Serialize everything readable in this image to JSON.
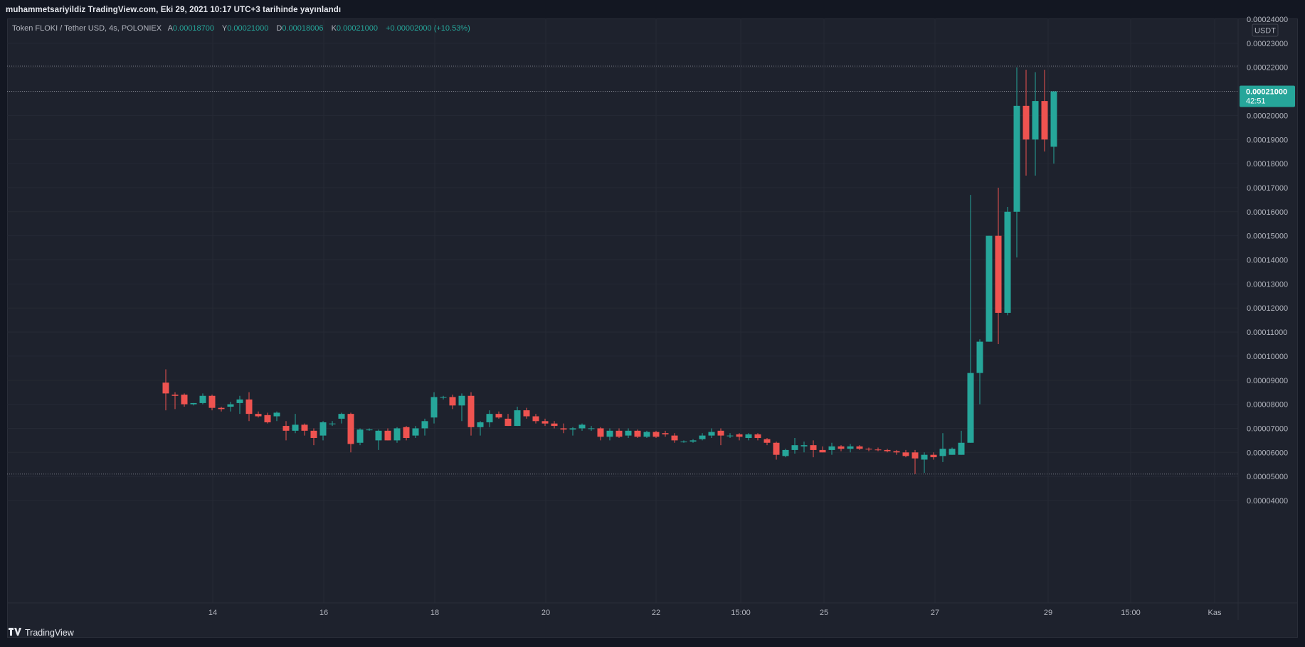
{
  "header": {
    "text": "muhammetsariyildiz TradingView.com, Eki 29, 2021 10:17 UTC+3 tarihinde yayınlandı"
  },
  "legend": {
    "symbol": "Token FLOKI / Tether USD, 4s, POLONIEX",
    "open_label": "A",
    "open": "0.00018700",
    "high_label": "Y",
    "high": "0.00021000",
    "low_label": "D",
    "low": "0.00018006",
    "close_label": "K",
    "close": "0.00021000",
    "change": "+0.00002000 (+10.53%)"
  },
  "price_axis": {
    "currency": "USDT",
    "top_partial_label": "0.00024000",
    "labels": [
      "0.00023000",
      "0.00022000",
      "0.00021000",
      "0.00020000",
      "0.00019000",
      "0.00018000",
      "0.00017000",
      "0.00016000",
      "0.00015000",
      "0.00014000",
      "0.00013000",
      "0.00012000",
      "0.00011000",
      "0.00010000",
      "0.00009000",
      "0.00008000",
      "0.00007000",
      "0.00006000",
      "0.00005000",
      "0.00004000"
    ],
    "current_price": "0.00021000",
    "countdown": "42:51",
    "current_price_color": "#26a69a"
  },
  "time_axis": {
    "labels": [
      "14",
      "16",
      "18",
      "20",
      "22",
      "15:00",
      "25",
      "27",
      "29",
      "15:00",
      "Kas"
    ]
  },
  "colors": {
    "up": "#26a69a",
    "down": "#ef5350",
    "background": "#1e222d",
    "grid": "#2a2e39"
  },
  "branding": {
    "name": "TradingView",
    "logo": "tradingview-logo-icon"
  },
  "chart_data": {
    "type": "candlestick",
    "title": "Token FLOKI / Tether USD, 4s, POLONIEX",
    "currency": "USDT",
    "ylim": [
      3.6e-05,
      0.00024
    ],
    "horizontal_lines": [
      5.1e-05,
      0.0002205,
      0.00021
    ],
    "candles": [
      [
        8.9e-05,
        9.45e-05,
        7.75e-05,
        8.45e-05
      ],
      [
        8.4e-05,
        8.5e-05,
        7.8e-05,
        8.35e-05
      ],
      [
        8.4e-05,
        8.45e-05,
        7.9e-05,
        8e-05
      ],
      [
        8e-05,
        8.05e-05,
        7.95e-05,
        8.05e-05
      ],
      [
        8.05e-05,
        8.45e-05,
        8e-05,
        8.35e-05
      ],
      [
        8.35e-05,
        8.4e-05,
        7.75e-05,
        7.85e-05
      ],
      [
        7.85e-05,
        7.9e-05,
        7.7e-05,
        7.8e-05
      ],
      [
        7.9e-05,
        8.1e-05,
        7.7e-05,
        8e-05
      ],
      [
        8.05e-05,
        8.35e-05,
        7.6e-05,
        8.2e-05
      ],
      [
        8.2e-05,
        8.5e-05,
        7.3e-05,
        7.6e-05
      ],
      [
        7.6e-05,
        7.7e-05,
        7.45e-05,
        7.5e-05
      ],
      [
        7.55e-05,
        7.65e-05,
        7.2e-05,
        7.25e-05
      ],
      [
        7.5e-05,
        7.7e-05,
        7.3e-05,
        7.65e-05
      ],
      [
        7.1e-05,
        7.3e-05,
        6.5e-05,
        6.9e-05
      ],
      [
        6.9e-05,
        7.6e-05,
        6.8e-05,
        7.15e-05
      ],
      [
        7.15e-05,
        7.2e-05,
        6.7e-05,
        6.9e-05
      ],
      [
        6.9e-05,
        7e-05,
        6.3e-05,
        6.6e-05
      ],
      [
        6.7e-05,
        7.3e-05,
        6.5e-05,
        7.25e-05
      ],
      [
        7.2e-05,
        7.3e-05,
        7.1e-05,
        7.2e-05
      ],
      [
        7.4e-05,
        7.65e-05,
        7.2e-05,
        7.6e-05
      ],
      [
        7.6e-05,
        7.65e-05,
        6e-05,
        6.35e-05
      ],
      [
        6.4e-05,
        7e-05,
        6.3e-05,
        6.95e-05
      ],
      [
        6.95e-05,
        7e-05,
        6.9e-05,
        6.95e-05
      ],
      [
        6.5e-05,
        6.95e-05,
        6.1e-05,
        6.9e-05
      ],
      [
        6.9e-05,
        7e-05,
        6.5e-05,
        6.5e-05
      ],
      [
        6.5e-05,
        7.05e-05,
        6.4e-05,
        7e-05
      ],
      [
        7.05e-05,
        7.1e-05,
        6.5e-05,
        6.6e-05
      ],
      [
        6.7e-05,
        7.1e-05,
        6.6e-05,
        7e-05
      ],
      [
        7e-05,
        7.4e-05,
        6.7e-05,
        7.3e-05
      ],
      [
        7.45e-05,
        8.5e-05,
        7.2e-05,
        8.3e-05
      ],
      [
        8.3e-05,
        8.35e-05,
        8.2e-05,
        8.3e-05
      ],
      [
        8.3e-05,
        8.4e-05,
        7.8e-05,
        7.95e-05
      ],
      [
        7.95e-05,
        8.45e-05,
        7.3e-05,
        8.35e-05
      ],
      [
        8.35e-05,
        8.5e-05,
        6.7e-05,
        7.05e-05
      ],
      [
        7.05e-05,
        7.3e-05,
        6.7e-05,
        7.25e-05
      ],
      [
        7.25e-05,
        7.75e-05,
        7.05e-05,
        7.6e-05
      ],
      [
        7.6e-05,
        7.7e-05,
        7.4e-05,
        7.45e-05
      ],
      [
        7.4e-05,
        7.6e-05,
        7.1e-05,
        7.1e-05
      ],
      [
        7.1e-05,
        7.9e-05,
        7.1e-05,
        7.75e-05
      ],
      [
        7.75e-05,
        7.85e-05,
        7.4e-05,
        7.5e-05
      ],
      [
        7.5e-05,
        7.6e-05,
        7.2e-05,
        7.3e-05
      ],
      [
        7.3e-05,
        7.4e-05,
        7.1e-05,
        7.2e-05
      ],
      [
        7.2e-05,
        7.3e-05,
        7e-05,
        7.1e-05
      ],
      [
        7e-05,
        7.2e-05,
        6.8e-05,
        6.95e-05
      ],
      [
        6.95e-05,
        7.05e-05,
        6.7e-05,
        7e-05
      ],
      [
        7e-05,
        7.2e-05,
        6.9e-05,
        7.15e-05
      ],
      [
        7e-05,
        7.1e-05,
        6.9e-05,
        7e-05
      ],
      [
        7e-05,
        7.05e-05,
        6.5e-05,
        6.65e-05
      ],
      [
        6.65e-05,
        7e-05,
        6.5e-05,
        6.9e-05
      ],
      [
        6.9e-05,
        7e-05,
        6.6e-05,
        6.65e-05
      ],
      [
        6.7e-05,
        7e-05,
        6.6e-05,
        6.9e-05
      ],
      [
        6.9e-05,
        6.95e-05,
        6.6e-05,
        6.65e-05
      ],
      [
        6.65e-05,
        6.9e-05,
        6.6e-05,
        6.85e-05
      ],
      [
        6.85e-05,
        6.9e-05,
        6.6e-05,
        6.65e-05
      ],
      [
        6.8e-05,
        6.9e-05,
        6.65e-05,
        6.75e-05
      ],
      [
        6.7e-05,
        6.8e-05,
        6.4e-05,
        6.5e-05
      ],
      [
        6.45e-05,
        6.5e-05,
        6.4e-05,
        6.45e-05
      ],
      [
        6.45e-05,
        6.55e-05,
        6.4e-05,
        6.5e-05
      ],
      [
        6.55e-05,
        6.8e-05,
        6.5e-05,
        6.7e-05
      ],
      [
        6.7e-05,
        7e-05,
        6.6e-05,
        6.85e-05
      ],
      [
        6.9e-05,
        7e-05,
        6.3e-05,
        6.7e-05
      ],
      [
        6.7e-05,
        6.8e-05,
        6.6e-05,
        6.7e-05
      ],
      [
        6.75e-05,
        6.8e-05,
        6.5e-05,
        6.65e-05
      ],
      [
        6.6e-05,
        6.8e-05,
        6.5e-05,
        6.75e-05
      ],
      [
        6.75e-05,
        6.8e-05,
        6.5e-05,
        6.6e-05
      ],
      [
        6.55e-05,
        6.6e-05,
        6.3e-05,
        6.4e-05
      ],
      [
        6.4e-05,
        6.45e-05,
        5.7e-05,
        5.9e-05
      ],
      [
        5.85e-05,
        6.15e-05,
        5.8e-05,
        6.1e-05
      ],
      [
        6.1e-05,
        6.6e-05,
        5.95e-05,
        6.3e-05
      ],
      [
        6.25e-05,
        6.45e-05,
        6e-05,
        6.3e-05
      ],
      [
        6.3e-05,
        6.5e-05,
        5.8e-05,
        6.1e-05
      ],
      [
        6.1e-05,
        6.25e-05,
        6e-05,
        6e-05
      ],
      [
        6.1e-05,
        6.4e-05,
        5.9e-05,
        6.25e-05
      ],
      [
        6.25e-05,
        6.3e-05,
        6.05e-05,
        6.15e-05
      ],
      [
        6.15e-05,
        6.35e-05,
        6e-05,
        6.25e-05
      ],
      [
        6.25e-05,
        6.3e-05,
        6.1e-05,
        6.15e-05
      ],
      [
        6.15e-05,
        6.2e-05,
        6.05e-05,
        6.12e-05
      ],
      [
        6.12e-05,
        6.2e-05,
        6.05e-05,
        6.1e-05
      ],
      [
        6.1e-05,
        6.15e-05,
        6e-05,
        6.05e-05
      ],
      [
        6.05e-05,
        6.1e-05,
        5.9e-05,
        6e-05
      ],
      [
        6e-05,
        6.1e-05,
        5.8e-05,
        5.85e-05
      ],
      [
        6e-05,
        6.1e-05,
        5.1e-05,
        5.75e-05
      ],
      [
        5.7e-05,
        6e-05,
        5.15e-05,
        5.9e-05
      ],
      [
        5.9e-05,
        6e-05,
        5.7e-05,
        5.8e-05
      ],
      [
        5.85e-05,
        6.8e-05,
        5.6e-05,
        6.15e-05
      ],
      [
        5.9e-05,
        6.2e-05,
        5.9e-05,
        6.15e-05
      ],
      [
        5.9e-05,
        6.9e-05,
        5.9e-05,
        6.4e-05
      ],
      [
        6.4e-05,
        0.000167,
        6.4e-05,
        9.3e-05
      ],
      [
        9.3e-05,
        0.000107,
        8e-05,
        0.000106
      ],
      [
        0.000106,
        0.00015,
        0.000106,
        0.00015
      ],
      [
        0.00015,
        0.00017,
        0.000105,
        0.000118
      ],
      [
        0.000118,
        0.000162,
        0.000117,
        0.00016
      ],
      [
        0.00016,
        0.00022,
        0.000141,
        0.000204
      ],
      [
        0.000204,
        0.000219,
        0.000175,
        0.00019
      ],
      [
        0.00019,
        0.000218,
        0.000175,
        0.000206
      ],
      [
        0.000206,
        0.000219,
        0.000185,
        0.00019
      ],
      [
        0.000187,
        0.00021,
        0.00018,
        0.00021
      ]
    ]
  }
}
